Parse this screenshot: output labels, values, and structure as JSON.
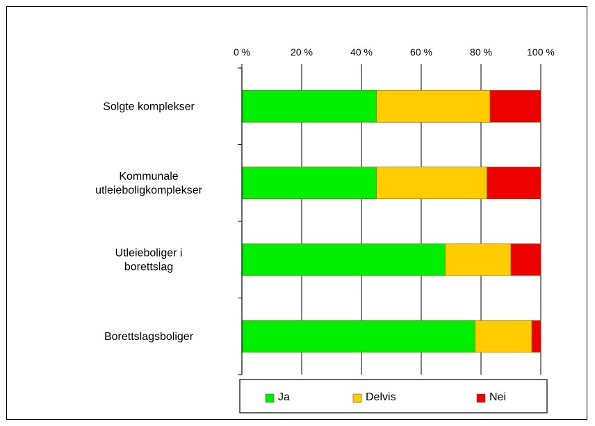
{
  "chart_data": {
    "type": "bar",
    "orientation": "horizontal",
    "stacked": true,
    "categories": [
      [
        "Solgte komplekser"
      ],
      [
        "Kommunale",
        "utleieboligkomplekser"
      ],
      [
        "Utleieboliger i",
        "borettslag"
      ],
      [
        "Borettslagsboliger"
      ]
    ],
    "series": [
      {
        "name": "Ja",
        "color": "#00ee00",
        "values": [
          45,
          45,
          68,
          78
        ]
      },
      {
        "name": "Delvis",
        "color": "#ffcc00",
        "values": [
          38,
          37,
          22,
          19
        ]
      },
      {
        "name": "Nei",
        "color": "#ee0000",
        "values": [
          17,
          18,
          10,
          3
        ]
      }
    ],
    "xlim": [
      0,
      100
    ],
    "xticks": [
      "0 %",
      "20 %",
      "40 %",
      "60 %",
      "80 %",
      "100 %"
    ],
    "x_axis_position": "top",
    "grid": true,
    "legend_position": "bottom",
    "title": "",
    "xlabel": "",
    "ylabel": ""
  }
}
